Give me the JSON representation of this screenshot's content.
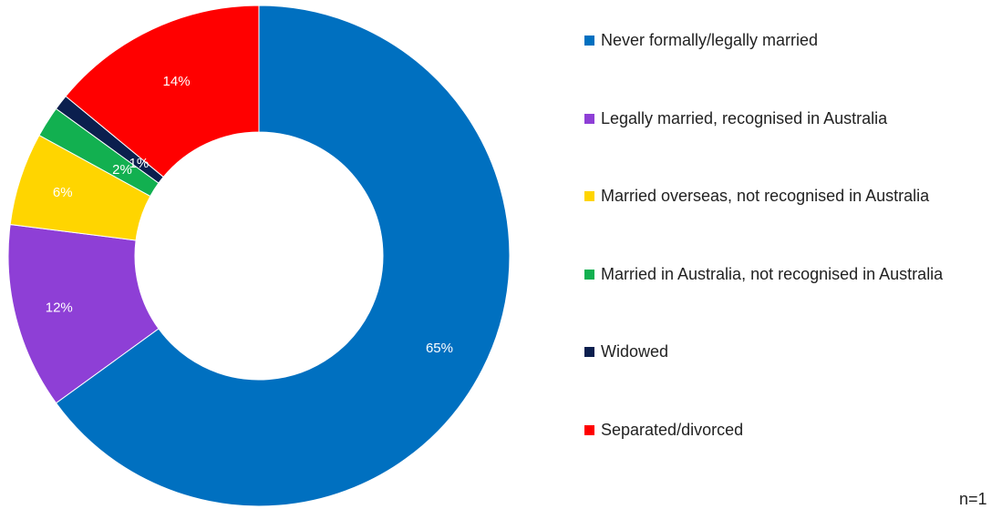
{
  "chart_data": {
    "type": "pie",
    "variant": "donut",
    "title": "",
    "categories": [
      "Never formally/legally married",
      "Legally married, recognised in Australia",
      "Married overseas, not recognised in Australia",
      "Married in Australia, not recognised in Australia",
      "Widowed",
      "Separated/divorced"
    ],
    "values": [
      65,
      12,
      6,
      2,
      1,
      14
    ],
    "labels": [
      "65%",
      "12%",
      "6%",
      "2%",
      "1%",
      "14%"
    ],
    "colors": [
      "#0070C0",
      "#8E3FD6",
      "#FFD500",
      "#12B050",
      "#0B1F4E",
      "#FF0000"
    ],
    "legend_position": "right",
    "footnote": "n=1"
  }
}
